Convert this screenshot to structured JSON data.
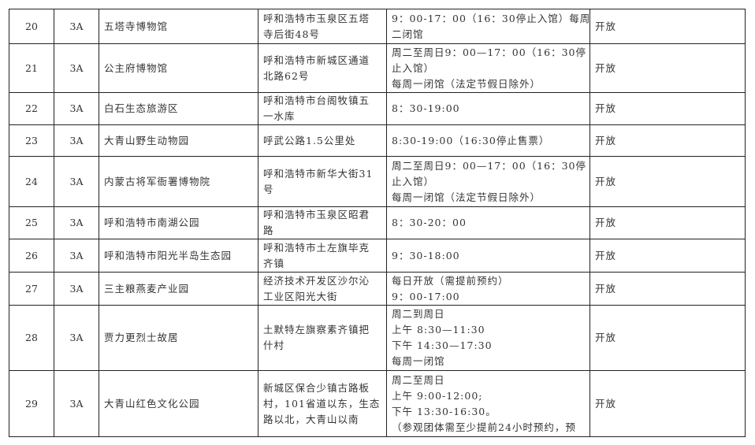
{
  "rows": [
    {
      "no": "20",
      "level": "3A",
      "name": "五塔寺博物馆",
      "address": [
        "呼和浩特市玉泉区五塔",
        "寺后街48号"
      ],
      "hours": [
        "9：00-17：00（16：30停止入馆）每周",
        "二闭馆"
      ],
      "status": "开放"
    },
    {
      "no": "21",
      "level": "3A",
      "name": "公主府博物馆",
      "address": [
        "呼和浩特市新城区通道",
        "北路62号"
      ],
      "hours": [
        "周二至周日9：00—17：00（16：30停",
        "止入馆）",
        "每周一闭馆（法定节假日除外）"
      ],
      "status": "开放"
    },
    {
      "no": "22",
      "level": "3A",
      "name": "白石生态旅游区",
      "address": [
        "呼和浩特市台阁牧镇五",
        "一水库"
      ],
      "hours": [
        "8：30-19:00"
      ],
      "status": "开放"
    },
    {
      "no": "23",
      "level": "3A",
      "name": "大青山野生动物园",
      "address": [
        "呼武公路1.5公里处"
      ],
      "hours": [
        "8:30-19:00（16:30停止售票）"
      ],
      "status": "开放"
    },
    {
      "no": "24",
      "level": "3A",
      "name": "内蒙古将军衙署博物院",
      "address": [
        "呼和浩特市新华大街31",
        "号"
      ],
      "hours": [
        "周二至周日9：00—17：00（16：30停",
        "止入馆）",
        "每周一闭馆（法定节假日除外）"
      ],
      "status": "开放"
    },
    {
      "no": "25",
      "level": "3A",
      "name": "呼和浩特市南湖公园",
      "address": [
        "呼和浩特市玉泉区昭君",
        "路"
      ],
      "hours": [
        "8：30-20：00"
      ],
      "status": "开放"
    },
    {
      "no": "26",
      "level": "3A",
      "name": "呼和浩特市阳光半岛生态园",
      "address": [
        "呼和浩特市土左旗毕克",
        "齐镇"
      ],
      "hours": [
        "9：30-18:00"
      ],
      "status": "开放"
    },
    {
      "no": "27",
      "level": "3A",
      "name": "三主粮燕麦产业园",
      "address": [
        "经济技术开发区沙尔沁",
        "工业区阳光大街"
      ],
      "hours": [
        "每日开放（需提前预约）",
        "9：00-17:00"
      ],
      "status": "开放"
    },
    {
      "no": "28",
      "level": "3A",
      "name": "贾力更烈士故居",
      "address": [
        "土默特左旗察素齐镇把",
        "什村"
      ],
      "hours": [
        "周二到周日",
        "上午 8:30—11:30",
        "下午 14:30—17:30",
        "每周一闭馆"
      ],
      "status": "开放"
    },
    {
      "no": "29",
      "level": "3A",
      "name": "大青山红色文化公园",
      "address": [
        "新城区保合少镇古路板",
        "村，101省道以东，生态",
        "路以北，大青山以南"
      ],
      "hours": [
        "周二至周日",
        "上午 9:00-12:00;",
        "下午 13:30-16:30。",
        "（参观团体需至少提前24小时预约，预"
      ],
      "status": "开放"
    }
  ]
}
